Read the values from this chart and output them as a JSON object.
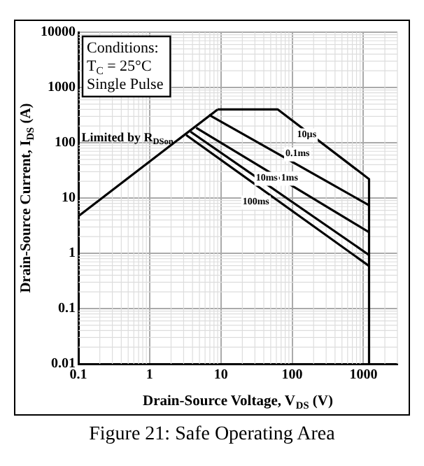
{
  "chart_data": {
    "type": "line",
    "title": "Figure 21: Safe Operating Area",
    "xlabel": "Drain-Source Voltage, V$_{DS}$ (V)",
    "ylabel": "Drain-Source Current, I$_{DS}$ (A)",
    "log": "xy",
    "grid": true,
    "legend": false,
    "marker": "none",
    "line_style": "solid",
    "xlim": [
      0.1,
      3000
    ],
    "xticks": [
      0.1,
      1,
      10,
      100,
      1000
    ],
    "ylim": [
      0.01,
      10000
    ],
    "yticks": [
      0.01,
      0.1,
      1,
      10,
      100,
      1000,
      10000
    ],
    "series": [
      {
        "color": "#000000",
        "x": [
          0.1,
          9
        ],
        "values": [
          4.7,
          400
        ]
      },
      {
        "color": "#000000",
        "x": [
          9,
          63,
          1200,
          1200
        ],
        "values": [
          400,
          400,
          22,
          0.01
        ]
      },
      {
        "color": "#000000",
        "x": [
          6.8,
          1200
        ],
        "values": [
          320,
          7.4
        ]
      },
      {
        "color": "#000000",
        "x": [
          4.5,
          1200
        ],
        "values": [
          186,
          2.4
        ]
      },
      {
        "color": "#000000",
        "x": [
          3.75,
          1200
        ],
        "values": [
          158,
          0.93
        ]
      },
      {
        "color": "#000000",
        "x": [
          3.26,
          1200
        ],
        "values": [
          138,
          0.59
        ]
      }
    ],
    "annotations": [
      "Conditions:",
      "T$_{C}$ = 25°C",
      "Single Pulse",
      {
        "text": "Limited by R$_{DSon}$",
        "x": 2.7,
        "y": 120
      },
      {
        "text": "10µs",
        "x": 160,
        "y": 140
      },
      {
        "text": "0.1ms",
        "x": 119,
        "y": 63
      },
      {
        "text": "1ms",
        "x": 92,
        "y": 23
      },
      {
        "text": "10ms",
        "x": 44,
        "y": 23
      },
      {
        "text": "100ms",
        "x": 31,
        "y": 8.5
      }
    ]
  }
}
